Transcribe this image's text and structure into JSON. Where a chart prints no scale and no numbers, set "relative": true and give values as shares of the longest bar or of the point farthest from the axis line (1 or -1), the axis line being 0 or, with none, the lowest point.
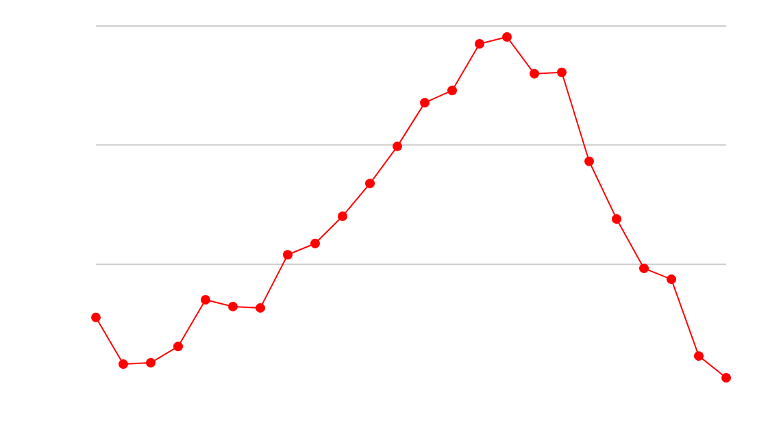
{
  "chart_data": {
    "type": "line",
    "relative": true,
    "marker": "circle",
    "line_style": "solid",
    "ref_lines": [
      {
        "axis": "y",
        "value": 0.333,
        "color": "#cccccc"
      },
      {
        "axis": "y",
        "value": 0.683,
        "color": "#cccccc"
      },
      {
        "axis": "y",
        "value": 1.032,
        "color": "#cccccc"
      }
    ],
    "categories": [
      null,
      null,
      null,
      null,
      null,
      null,
      null,
      null,
      null,
      null,
      null,
      null,
      null,
      null,
      null,
      null,
      null,
      null,
      null,
      null,
      null,
      null,
      null,
      null
    ],
    "series": [
      {
        "color": "#ff0000",
        "values": [
          0.177,
          0.04,
          0.044,
          0.092,
          0.229,
          0.209,
          0.205,
          0.361,
          0.394,
          0.474,
          0.57,
          0.679,
          0.807,
          0.843,
          0.98,
          1,
          0.892,
          0.896,
          0.635,
          0.466,
          0.321,
          0.289,
          0.064,
          0
        ]
      }
    ]
  }
}
